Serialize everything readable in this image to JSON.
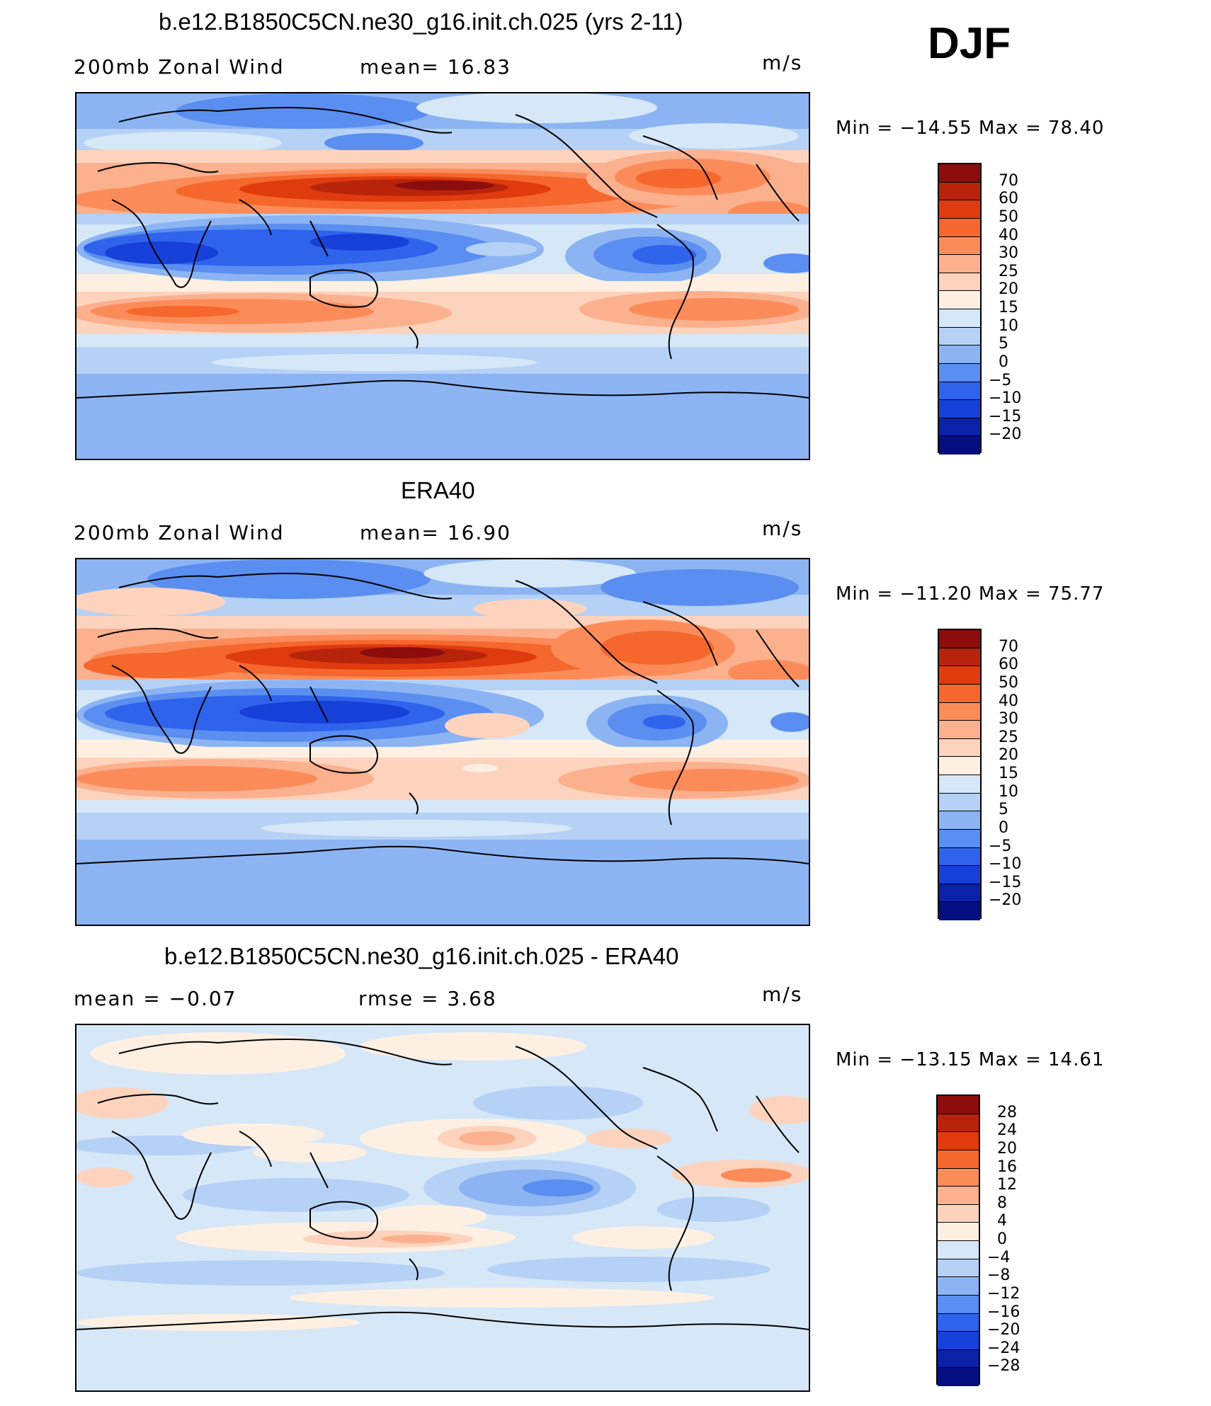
{
  "season_label": "DJF",
  "panels": [
    {
      "title": "b.e12.B1850C5CN.ne30_g16.init.ch.025 (yrs 2-11)",
      "left_label": "200mb Zonal Wind",
      "center_label": "mean=  16.83",
      "units": "m/s",
      "minmax": "Min = −14.55  Max =  78.40",
      "colorbar_labels": [
        "70",
        "60",
        "50",
        "40",
        "30",
        "25",
        "20",
        "15",
        "10",
        "5",
        "0",
        "−5",
        "−10",
        "−15",
        "−20"
      ]
    },
    {
      "title": "ERA40",
      "left_label": "200mb Zonal Wind",
      "center_label": "mean=  16.90",
      "units": "m/s",
      "minmax": "Min = −11.20  Max =  75.77",
      "colorbar_labels": [
        "70",
        "60",
        "50",
        "40",
        "30",
        "25",
        "20",
        "15",
        "10",
        "5",
        "0",
        "−5",
        "−10",
        "−15",
        "−20"
      ]
    },
    {
      "title": "b.e12.B1850C5CN.ne30_g16.init.ch.025 - ERA40",
      "left_label": "mean =  −0.07",
      "center_label": "rmse =   3.68",
      "units": "m/s",
      "minmax": "Min = −13.15  Max =  14.61",
      "colorbar_labels": [
        "28",
        "24",
        "20",
        "16",
        "12",
        "8",
        "4",
        "0",
        "−4",
        "−8",
        "−12",
        "−16",
        "−20",
        "−24",
        "−28"
      ]
    }
  ],
  "palette_wind": [
    "#8b0d0d",
    "#b8240b",
    "#e03b0f",
    "#f5672c",
    "#fb8c5a",
    "#fbb08e",
    "#fdd3bd",
    "#fdf0e2",
    "#d6e7f8",
    "#b5d1f5",
    "#8cb4f3",
    "#5a8ef0",
    "#2f63ec",
    "#1640d8",
    "#0a21a8",
    "#050e80"
  ],
  "palette_diff": [
    "#8b0d0d",
    "#b8240b",
    "#e03b0f",
    "#f5672c",
    "#fb8c5a",
    "#fbb08e",
    "#fdd3bd",
    "#fdf0e2",
    "#d6e7f8",
    "#b5d1f5",
    "#8cb4f3",
    "#5a8ef0",
    "#2f63ec",
    "#1640d8",
    "#0a21a8",
    "#050e80"
  ]
}
